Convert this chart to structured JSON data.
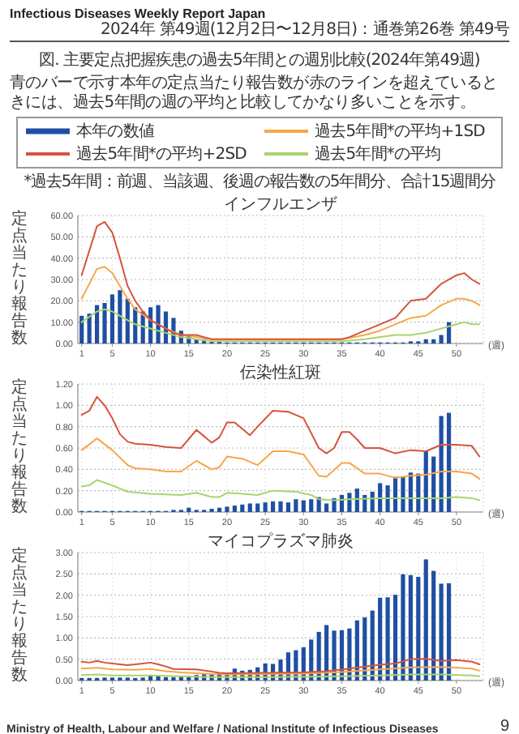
{
  "chart_data": [
    {
      "type": "other",
      "title": "図. 主要定点把握疾患の過去5年間との週別比較(2024年第49週)",
      "subtitle": "青のバーで示す本年の定点当たり報告数が赤のラインを超えているときには、過去5年間の週の平均と比較してかなり多いことを示す。",
      "annotations": [
        "Infectious Diseases Weekly Report Japan",
        "2024年 第49週(12月2日〜12月8日)：通巻第26巻 第49号",
        "Ministry of Health, Labour and Welfare / National Institute of Infectious Diseases",
        "9"
      ]
    },
    {
      "type": "bar",
      "title": "インフルエンザ",
      "ylabel": "定点当たり報告数",
      "xlabel": "(週)",
      "legend": "top",
      "grid": true,
      "annotations": [
        "*過去5年間：前週、当該週、後週の報告数の5年間分、合計15週間分"
      ],
      "xlim": [
        0.5,
        53.5
      ],
      "xticks": [
        1,
        5,
        10,
        15,
        20,
        25,
        30,
        35,
        40,
        45,
        50
      ],
      "ylim": [
        0,
        60
      ],
      "yticks": [
        {
          "value": 0,
          "label": "0.00"
        },
        {
          "value": 10,
          "label": "10.00"
        },
        {
          "value": 20,
          "label": "20.00"
        },
        {
          "value": 30,
          "label": "30.00"
        },
        {
          "value": 40,
          "label": "40.00"
        },
        {
          "value": 50,
          "label": "50.00"
        },
        {
          "value": 60,
          "label": "60.00"
        }
      ],
      "x": [
        1,
        2,
        3,
        4,
        5,
        6,
        7,
        8,
        9,
        10,
        11,
        12,
        13,
        14,
        15,
        16,
        17,
        18,
        19,
        20,
        21,
        22,
        23,
        24,
        25,
        26,
        27,
        28,
        29,
        30,
        31,
        32,
        33,
        34,
        35,
        36,
        37,
        38,
        39,
        40,
        41,
        42,
        43,
        44,
        45,
        46,
        47,
        48,
        49
      ],
      "series": [
        {
          "name": "本年の数値",
          "type": "bar",
          "color": "#1f4fa3",
          "values": [
            13,
            14,
            18,
            19,
            23,
            25,
            21,
            17,
            15,
            17,
            18,
            15,
            12,
            6,
            4,
            2,
            2,
            1,
            1,
            0.5,
            0.5,
            0.5,
            0.5,
            0.5,
            0.5,
            0.5,
            0.5,
            0.5,
            0.5,
            0.5,
            0.5,
            0.5,
            0.5,
            0.5,
            0.5,
            0.5,
            0.5,
            0.5,
            0.5,
            0.5,
            0.5,
            0.5,
            0.5,
            1,
            1,
            2,
            2,
            4,
            10
          ]
        },
        {
          "name": "過去5年間*の平均+1SD",
          "type": "line",
          "color": "#f7a64a",
          "x": [
            1,
            3,
            4,
            5,
            6,
            7,
            8,
            10,
            12,
            14,
            16,
            18,
            20,
            30,
            35,
            38,
            40,
            42,
            44,
            46,
            48,
            50,
            51,
            52,
            53
          ],
          "values": [
            21,
            35,
            36,
            33,
            27,
            21,
            16,
            11,
            7,
            4,
            3,
            2,
            2,
            2,
            2,
            4,
            6,
            9,
            12,
            13,
            18,
            21,
            21,
            20,
            18
          ]
        },
        {
          "name": "過去5年間*の平均+2SD",
          "type": "line",
          "color": "#d6533d",
          "x": [
            1,
            3,
            4,
            5,
            6,
            7,
            8,
            9,
            10,
            11,
            12,
            13,
            14,
            15,
            16,
            17,
            18,
            20,
            25,
            30,
            35,
            36,
            38,
            40,
            42,
            44,
            46,
            48,
            50,
            51,
            52,
            53
          ],
          "values": [
            32,
            55,
            57,
            52,
            40,
            27,
            20,
            15,
            11,
            9,
            7,
            5,
            4,
            4,
            4,
            3,
            2,
            2,
            2,
            2,
            2,
            3,
            6,
            9,
            12,
            20,
            21,
            28,
            32,
            33,
            30,
            28
          ]
        },
        {
          "name": "過去5年間*の平均",
          "type": "line",
          "color": "#a9d46f",
          "x": [
            1,
            3,
            4,
            5,
            6,
            7,
            8,
            9,
            10,
            12,
            14,
            16,
            18,
            20,
            30,
            35,
            38,
            40,
            42,
            44,
            46,
            48,
            50,
            51,
            52,
            53
          ],
          "values": [
            10,
            15,
            16,
            15,
            13,
            11,
            9,
            8,
            7,
            5,
            3,
            2,
            1,
            1,
            1,
            1,
            2,
            3,
            4,
            4,
            5,
            7,
            9,
            10,
            9,
            9
          ]
        }
      ]
    },
    {
      "type": "bar",
      "title": "伝染性紅斑",
      "ylabel": "定点当たり報告数",
      "xlabel": "(週)",
      "grid": true,
      "xlim": [
        0.5,
        53.5
      ],
      "xticks": [
        1,
        5,
        10,
        15,
        20,
        25,
        30,
        35,
        40,
        45,
        50
      ],
      "ylim": [
        0,
        1.2
      ],
      "yticks": [
        {
          "value": 0,
          "label": "0.00"
        },
        {
          "value": 0.2,
          "label": "0.20"
        },
        {
          "value": 0.4,
          "label": "0.40"
        },
        {
          "value": 0.6,
          "label": "0.60"
        },
        {
          "value": 0.8,
          "label": "0.80"
        },
        {
          "value": 1.0,
          "label": "1.00"
        },
        {
          "value": 1.2,
          "label": "1.20"
        }
      ],
      "x": [
        1,
        2,
        3,
        4,
        5,
        6,
        7,
        8,
        9,
        10,
        11,
        12,
        13,
        14,
        15,
        16,
        17,
        18,
        19,
        20,
        21,
        22,
        23,
        24,
        25,
        26,
        27,
        28,
        29,
        30,
        31,
        32,
        33,
        34,
        35,
        36,
        37,
        38,
        39,
        40,
        41,
        42,
        43,
        44,
        45,
        46,
        47,
        48,
        49
      ],
      "series": [
        {
          "type": "bar",
          "color": "#1f4fa3",
          "values": [
            0.01,
            0.01,
            0.01,
            0.01,
            0.01,
            0.01,
            0.01,
            0.01,
            0.01,
            0.01,
            0.01,
            0.01,
            0.02,
            0.02,
            0.04,
            0.02,
            0.02,
            0.03,
            0.04,
            0.05,
            0.06,
            0.07,
            0.08,
            0.08,
            0.09,
            0.1,
            0.1,
            0.09,
            0.12,
            0.11,
            0.12,
            0.14,
            0.08,
            0.13,
            0.16,
            0.18,
            0.22,
            0.16,
            0.19,
            0.27,
            0.25,
            0.33,
            0.33,
            0.37,
            0.36,
            0.57,
            0.52,
            0.9,
            0.93
          ]
        },
        {
          "type": "line",
          "color": "#f7a64a",
          "x": [
            1,
            3,
            5,
            7,
            8,
            10,
            12,
            14,
            16,
            18,
            19,
            20,
            22,
            24,
            26,
            28,
            30,
            32,
            33,
            35,
            36,
            38,
            40,
            42,
            44,
            46,
            48,
            50,
            52,
            53
          ],
          "values": [
            0.58,
            0.69,
            0.58,
            0.44,
            0.41,
            0.4,
            0.38,
            0.38,
            0.48,
            0.4,
            0.42,
            0.52,
            0.5,
            0.44,
            0.57,
            0.57,
            0.54,
            0.34,
            0.33,
            0.46,
            0.46,
            0.36,
            0.36,
            0.32,
            0.34,
            0.35,
            0.38,
            0.38,
            0.36,
            0.31
          ]
        },
        {
          "type": "line",
          "color": "#d6533d",
          "x": [
            1,
            2,
            3,
            4,
            5,
            6,
            7,
            8,
            10,
            12,
            14,
            16,
            18,
            19,
            20,
            21,
            23,
            24,
            26,
            28,
            30,
            32,
            33,
            34,
            35,
            36,
            37,
            38,
            40,
            42,
            44,
            46,
            48,
            50,
            52,
            53
          ],
          "values": [
            0.91,
            0.95,
            1.08,
            1.0,
            0.88,
            0.73,
            0.66,
            0.64,
            0.63,
            0.61,
            0.6,
            0.77,
            0.65,
            0.7,
            0.84,
            0.84,
            0.72,
            0.8,
            0.95,
            0.94,
            0.88,
            0.6,
            0.55,
            0.6,
            0.75,
            0.75,
            0.68,
            0.6,
            0.6,
            0.55,
            0.58,
            0.57,
            0.63,
            0.63,
            0.62,
            0.52
          ]
        },
        {
          "type": "line",
          "color": "#a9d46f",
          "x": [
            1,
            2,
            3,
            5,
            7,
            10,
            14,
            16,
            18,
            19,
            20,
            22,
            24,
            26,
            29,
            31,
            32,
            34,
            36,
            40,
            44,
            48,
            50,
            52,
            53
          ],
          "values": [
            0.24,
            0.25,
            0.3,
            0.25,
            0.19,
            0.17,
            0.16,
            0.18,
            0.14,
            0.14,
            0.18,
            0.17,
            0.16,
            0.2,
            0.19,
            0.16,
            0.12,
            0.11,
            0.12,
            0.13,
            0.13,
            0.13,
            0.14,
            0.13,
            0.11
          ]
        }
      ]
    },
    {
      "type": "bar",
      "title": "マイコプラズマ肺炎",
      "ylabel": "定点当たり報告数",
      "xlabel": "(週)",
      "grid": true,
      "xlim": [
        0.5,
        53.5
      ],
      "xticks": [
        1,
        5,
        10,
        15,
        20,
        25,
        30,
        35,
        40,
        45,
        50
      ],
      "ylim": [
        0,
        3
      ],
      "yticks": [
        {
          "value": 0,
          "label": "0.00"
        },
        {
          "value": 0.5,
          "label": "0.50"
        },
        {
          "value": 1,
          "label": "1.00"
        },
        {
          "value": 1.5,
          "label": "1.50"
        },
        {
          "value": 2,
          "label": "2.00"
        },
        {
          "value": 2.5,
          "label": "2.50"
        },
        {
          "value": 3,
          "label": "3.00"
        }
      ],
      "x": [
        1,
        2,
        3,
        4,
        5,
        6,
        7,
        8,
        9,
        10,
        11,
        12,
        13,
        14,
        15,
        16,
        17,
        18,
        19,
        20,
        21,
        22,
        23,
        24,
        25,
        26,
        27,
        28,
        29,
        30,
        31,
        32,
        33,
        34,
        35,
        36,
        37,
        38,
        39,
        40,
        41,
        42,
        43,
        44,
        45,
        46,
        47,
        48,
        49
      ],
      "series": [
        {
          "type": "bar",
          "color": "#1f4fa3",
          "values": [
            0.06,
            0.06,
            0.06,
            0.07,
            0.07,
            0.07,
            0.07,
            0.06,
            0.07,
            0.12,
            0.1,
            0.08,
            0.08,
            0.09,
            0.1,
            0.13,
            0.15,
            0.14,
            0.17,
            0.17,
            0.28,
            0.23,
            0.25,
            0.31,
            0.4,
            0.39,
            0.49,
            0.66,
            0.71,
            0.78,
            0.96,
            1.14,
            1.3,
            1.17,
            1.18,
            1.22,
            1.41,
            1.48,
            1.64,
            1.94,
            1.95,
            2.01,
            2.49,
            2.47,
            2.43,
            2.84,
            2.57,
            2.27,
            2.28
          ]
        },
        {
          "type": "line",
          "color": "#f7a64a",
          "x": [
            1,
            3,
            5,
            8,
            10,
            12,
            14,
            18,
            20,
            25,
            30,
            35,
            40,
            44,
            48,
            50,
            52,
            53
          ],
          "values": [
            0.28,
            0.3,
            0.26,
            0.25,
            0.27,
            0.22,
            0.19,
            0.15,
            0.14,
            0.15,
            0.16,
            0.2,
            0.26,
            0.31,
            0.32,
            0.3,
            0.28,
            0.23
          ]
        },
        {
          "type": "line",
          "color": "#d6533d",
          "x": [
            1,
            2,
            3,
            4,
            5,
            7,
            9,
            10,
            11,
            12,
            13,
            16,
            18,
            19,
            20,
            25,
            30,
            33,
            36,
            40,
            42,
            44,
            46,
            48,
            50,
            52,
            53
          ],
          "values": [
            0.44,
            0.42,
            0.46,
            0.42,
            0.4,
            0.36,
            0.4,
            0.42,
            0.38,
            0.33,
            0.27,
            0.26,
            0.21,
            0.18,
            0.17,
            0.18,
            0.19,
            0.22,
            0.28,
            0.37,
            0.4,
            0.5,
            0.51,
            0.46,
            0.48,
            0.44,
            0.38
          ]
        },
        {
          "type": "line",
          "color": "#a9d46f",
          "x": [
            1,
            3,
            5,
            10,
            14,
            18,
            20,
            25,
            30,
            35,
            40,
            44,
            48,
            50,
            52,
            53
          ],
          "values": [
            0.13,
            0.14,
            0.12,
            0.12,
            0.1,
            0.08,
            0.08,
            0.08,
            0.09,
            0.1,
            0.12,
            0.14,
            0.14,
            0.13,
            0.12,
            0.1
          ]
        }
      ]
    }
  ]
}
